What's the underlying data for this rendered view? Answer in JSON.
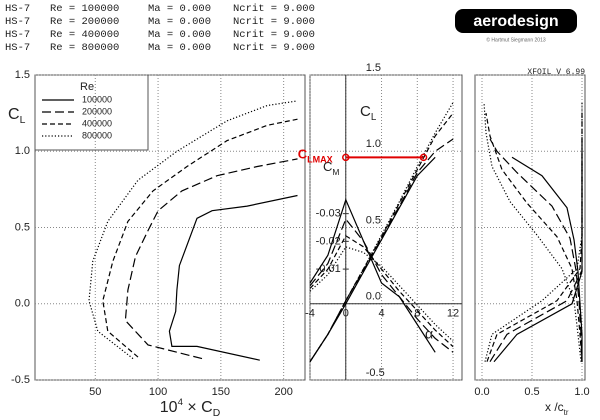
{
  "header": {
    "rows": [
      [
        "HS-7",
        "Re = 100000",
        "Ma = 0.000",
        "Ncrit = 9.000"
      ],
      [
        "HS-7",
        "Re = 200000",
        "Ma = 0.000",
        "Ncrit = 9.000"
      ],
      [
        "HS-7",
        "Re = 400000",
        "Ma = 0.000",
        "Ncrit = 9.000"
      ],
      [
        "HS-7",
        "Re = 800000",
        "Ma = 0.000",
        "Ncrit = 9.000"
      ]
    ],
    "logo": "aerodesign",
    "copyright": "© Hartmut Siegmann 2013",
    "version": "XFOIL V 6.99"
  },
  "chart_data": [
    {
      "type": "line",
      "x_label": {
        "base": "10",
        "sup": "4",
        "mid": " × C",
        "sub": "D"
      },
      "y_label": {
        "base": "C",
        "sub": "L"
      },
      "xlim": [
        2,
        217
      ],
      "xticks": [
        50,
        100,
        150,
        200
      ],
      "ylim": [
        -0.5,
        1.5
      ],
      "yticks": [
        -0.5,
        {
          "value": 0,
          "label": "0.0"
        },
        0.5,
        {
          "value": 1,
          "label": "1.0"
        },
        1.5
      ],
      "ytick_labels": "left",
      "xtick_labels": "bottom",
      "grid": true,
      "legend": {
        "title": "Re",
        "position": "upper left"
      },
      "series": [
        {
          "name": "100000",
          "dash": "solid",
          "color": "#000000",
          "x": [
            181,
            131,
            111,
            109,
            114,
            115,
            117,
            131,
            143,
            171,
            211
          ],
          "values": [
            -0.37,
            -0.28,
            -0.28,
            -0.18,
            -0.05,
            0.09,
            0.25,
            0.56,
            0.61,
            0.64,
            0.71
          ]
        },
        {
          "name": "200000",
          "dash": "long-dash",
          "color": "#000000",
          "x": [
            135,
            92,
            74,
            76,
            82,
            92,
            100,
            119,
            147,
            179,
            211
          ],
          "values": [
            -0.36,
            -0.27,
            -0.11,
            0.09,
            0.31,
            0.48,
            0.61,
            0.74,
            0.84,
            0.9,
            0.95
          ]
        },
        {
          "name": "400000",
          "dash": "dash",
          "color": "#000000",
          "x": [
            84,
            60,
            56,
            64,
            76,
            96,
            123,
            155,
            187,
            211
          ],
          "values": [
            -0.35,
            -0.18,
            0.02,
            0.28,
            0.54,
            0.74,
            0.9,
            1.07,
            1.17,
            1.21
          ]
        },
        {
          "name": "800000",
          "dash": "dot",
          "color": "#000000",
          "x": [
            80,
            52,
            45,
            48,
            60,
            84,
            115,
            155,
            187,
            211
          ],
          "values": [
            -0.36,
            -0.18,
            0.02,
            0.28,
            0.54,
            0.81,
            1.0,
            1.2,
            1.3,
            1.33
          ]
        }
      ]
    },
    {
      "type": "line",
      "x_label": "α",
      "y_label": {
        "base": "C",
        "sub": "L"
      },
      "y2_label": {
        "base": "C",
        "sub": "M"
      },
      "x": [
        -4,
        -2,
        0,
        2,
        4,
        6,
        8,
        10,
        12
      ],
      "xlim": [
        -4,
        13
      ],
      "xticks": [
        -4,
        0,
        4,
        8,
        12
      ],
      "ylim": [
        -0.5,
        1.5
      ],
      "yticks": [
        -0.5,
        {
          "value": 0,
          "label": "0.0"
        },
        0.5,
        {
          "value": 1,
          "label": "1.0"
        },
        1.5
      ],
      "y2lim": [
        0.03,
        -0.08
      ],
      "y2ticks": [
        -0.03,
        -0.02,
        -0.01
      ],
      "ytick_labels": "axis",
      "xtick_labels": "zero",
      "grid": true,
      "series": [
        {
          "dash": "solid",
          "color": "#000000",
          "values": [
            -0.38,
            -0.2,
            0.0,
            0.21,
            0.42,
            0.63,
            0.84,
            0.96,
            null
          ]
        },
        {
          "dash": "long-dash",
          "color": "#000000",
          "values": [
            -0.38,
            -0.2,
            0.02,
            0.22,
            0.43,
            0.64,
            0.86,
            1.0,
            1.08
          ]
        },
        {
          "dash": "dash",
          "color": "#000000",
          "values": [
            -0.38,
            -0.2,
            0.02,
            0.23,
            0.44,
            0.66,
            0.88,
            1.1,
            1.25
          ]
        },
        {
          "dash": "dot",
          "color": "#000000",
          "values": [
            -0.38,
            -0.2,
            0.02,
            0.23,
            0.45,
            0.67,
            0.9,
            1.12,
            1.32
          ]
        },
        {
          "dash": "solid",
          "color": "#000000",
          "axis": "y2",
          "values": [
            -0.005,
            -0.015,
            -0.035,
            -0.02,
            -0.005,
            0.0,
            0.01,
            0.02,
            null
          ]
        },
        {
          "dash": "long-dash",
          "color": "#000000",
          "axis": "y2",
          "values": [
            -0.004,
            -0.012,
            -0.028,
            -0.02,
            -0.008,
            0.0,
            0.008,
            0.015,
            0.02
          ]
        },
        {
          "dash": "dash",
          "color": "#000000",
          "axis": "y2",
          "values": [
            -0.003,
            -0.01,
            -0.022,
            -0.018,
            -0.01,
            -0.002,
            0.005,
            0.012,
            0.018
          ]
        },
        {
          "dash": "dot",
          "color": "#000000",
          "axis": "y2",
          "values": [
            -0.002,
            -0.008,
            -0.018,
            -0.016,
            -0.011,
            -0.004,
            0.003,
            0.01,
            0.016
          ]
        }
      ],
      "annotation": {
        "base": "C",
        "sub": "LMAX",
        "x": [
          0,
          8.7
        ],
        "y": 0.96,
        "color": "#e00000"
      }
    },
    {
      "type": "line",
      "x_label": {
        "base": "x",
        "sub": "tr",
        "mid": " /c"
      },
      "xlim": [
        -0.07,
        1.03
      ],
      "xticks": [
        {
          "value": 0,
          "label": "0.0"
        },
        0.5,
        {
          "value": 1,
          "label": "1.0"
        }
      ],
      "ylim": [
        -0.5,
        1.5
      ],
      "yticks": [
        -0.5,
        0,
        0.5,
        1,
        1.5
      ],
      "ytick_labels": "none",
      "xtick_labels": "bottom",
      "grid": true,
      "series": [
        {
          "dash": "solid",
          "color": "#000000",
          "x": [
            1.0,
            1.0,
            0.98,
            0.96,
            0.92,
            0.85,
            0.6,
            0.3,
            null
          ],
          "values": [
            -0.38,
            -0.2,
            0.0,
            0.21,
            0.42,
            0.63,
            0.84,
            0.96,
            null
          ]
        },
        {
          "dash": "long-dash",
          "color": "#000000",
          "x": [
            1.0,
            0.99,
            0.97,
            0.94,
            0.88,
            0.7,
            0.35,
            0.15,
            0.08
          ],
          "values": [
            -0.38,
            -0.2,
            0.02,
            0.22,
            0.43,
            0.64,
            0.86,
            1.0,
            1.08
          ]
        },
        {
          "dash": "dash",
          "color": "#000000",
          "x": [
            1.0,
            0.98,
            0.95,
            0.9,
            0.75,
            0.45,
            0.2,
            0.08,
            0.04
          ],
          "values": [
            -0.38,
            -0.2,
            0.02,
            0.23,
            0.44,
            0.66,
            0.88,
            1.1,
            1.25
          ]
        },
        {
          "dash": "dot",
          "color": "#000000",
          "x": [
            0.99,
            0.96,
            0.92,
            0.8,
            0.55,
            0.28,
            0.1,
            0.04,
            0.02
          ],
          "values": [
            -0.38,
            -0.2,
            0.02,
            0.23,
            0.45,
            0.67,
            0.9,
            1.12,
            1.32
          ]
        },
        {
          "dash": "solid",
          "color": "#000000",
          "x": [
            0.12,
            0.35,
            0.9,
            1.0,
            1.0,
            1.0,
            1.0,
            1.0,
            null
          ],
          "values": [
            -0.38,
            -0.2,
            0.0,
            0.21,
            0.42,
            0.63,
            0.84,
            0.96,
            null
          ]
        },
        {
          "dash": "long-dash",
          "color": "#000000",
          "x": [
            0.08,
            0.25,
            0.85,
            1.0,
            1.0,
            1.0,
            1.0,
            1.0,
            1.0
          ],
          "values": [
            -0.38,
            -0.2,
            0.02,
            0.22,
            0.43,
            0.64,
            0.86,
            1.0,
            1.08
          ]
        },
        {
          "dash": "dash",
          "color": "#000000",
          "x": [
            0.05,
            0.15,
            0.75,
            0.98,
            1.0,
            1.0,
            1.0,
            1.0,
            1.0
          ],
          "values": [
            -0.38,
            -0.2,
            0.02,
            0.23,
            0.44,
            0.66,
            0.88,
            1.1,
            1.25
          ]
        },
        {
          "dash": "dot",
          "color": "#000000",
          "x": [
            0.03,
            0.1,
            0.6,
            0.95,
            1.0,
            1.0,
            1.0,
            1.0,
            1.0
          ],
          "values": [
            -0.38,
            -0.2,
            0.02,
            0.23,
            0.45,
            0.67,
            0.9,
            1.12,
            1.32
          ]
        }
      ]
    }
  ]
}
